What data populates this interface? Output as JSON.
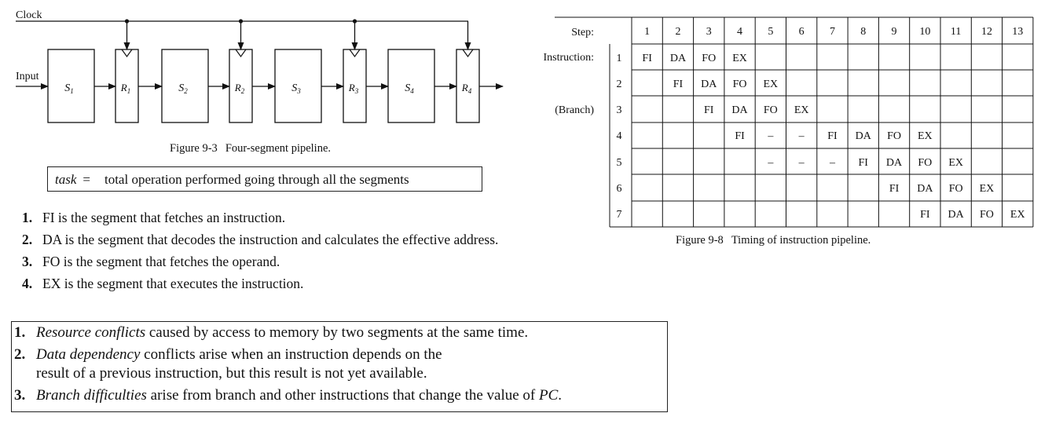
{
  "pipeline_figure": {
    "clock_label": "Clock",
    "input_label": "Input",
    "segments": [
      "S1",
      "S2",
      "S3",
      "S4"
    ],
    "registers": [
      "R1",
      "R2",
      "R3",
      "R4"
    ],
    "caption_number": "Figure 9-3",
    "caption_text": "Four-segment pipeline."
  },
  "task_definition": {
    "term": "task",
    "equals": "=",
    "definition": "total operation performed going through all the segments"
  },
  "segment_list": [
    {
      "number": "1.",
      "text": "FI is the segment that fetches an instruction."
    },
    {
      "number": "2.",
      "text": "DA is the segment that decodes the instruction and calculates the effective address."
    },
    {
      "number": "3.",
      "text": "FO is the segment that fetches the operand."
    },
    {
      "number": "4.",
      "text": "EX is the segment that executes the instruction."
    }
  ],
  "hazards": [
    {
      "number": "1.",
      "term": "Resource conflicts",
      "rest": "caused by access to memory by two segments at the same time."
    },
    {
      "number": "2.",
      "term": "Data dependency",
      "rest": "conflicts arise when an instruction depends on the",
      "line2": "result of a previous instruction, but this result is not yet available."
    },
    {
      "number": "3.",
      "term": "Branch difficulties",
      "rest": "arise from branch and other instructions that change the value of",
      "tail_italic": "PC",
      "tail_end": "."
    }
  ],
  "timing_figure": {
    "step_label": "Step:",
    "instruction_label": "Instruction:",
    "branch_label": "(Branch)",
    "steps": [
      "1",
      "2",
      "3",
      "4",
      "5",
      "6",
      "7",
      "8",
      "9",
      "10",
      "11",
      "12",
      "13"
    ],
    "instructions": [
      "1",
      "2",
      "3",
      "4",
      "5",
      "6",
      "7"
    ],
    "rows": [
      [
        "FI",
        "DA",
        "FO",
        "EX",
        "",
        "",
        "",
        "",
        "",
        "",
        "",
        "",
        ""
      ],
      [
        "",
        "FI",
        "DA",
        "FO",
        "EX",
        "",
        "",
        "",
        "",
        "",
        "",
        "",
        ""
      ],
      [
        "",
        "",
        "FI",
        "DA",
        "FO",
        "EX",
        "",
        "",
        "",
        "",
        "",
        "",
        ""
      ],
      [
        "",
        "",
        "",
        "FI",
        "–",
        "–",
        "FI",
        "DA",
        "FO",
        "EX",
        "",
        "",
        ""
      ],
      [
        "",
        "",
        "",
        "",
        "–",
        "–",
        "–",
        "FI",
        "DA",
        "FO",
        "EX",
        "",
        ""
      ],
      [
        "",
        "",
        "",
        "",
        "",
        "",
        "",
        "",
        "FI",
        "DA",
        "FO",
        "EX",
        ""
      ],
      [
        "",
        "",
        "",
        "",
        "",
        "",
        "",
        "",
        "",
        "FI",
        "DA",
        "FO",
        "EX"
      ]
    ],
    "caption_number": "Figure 9-8",
    "caption_text": "Timing of instruction pipeline."
  }
}
